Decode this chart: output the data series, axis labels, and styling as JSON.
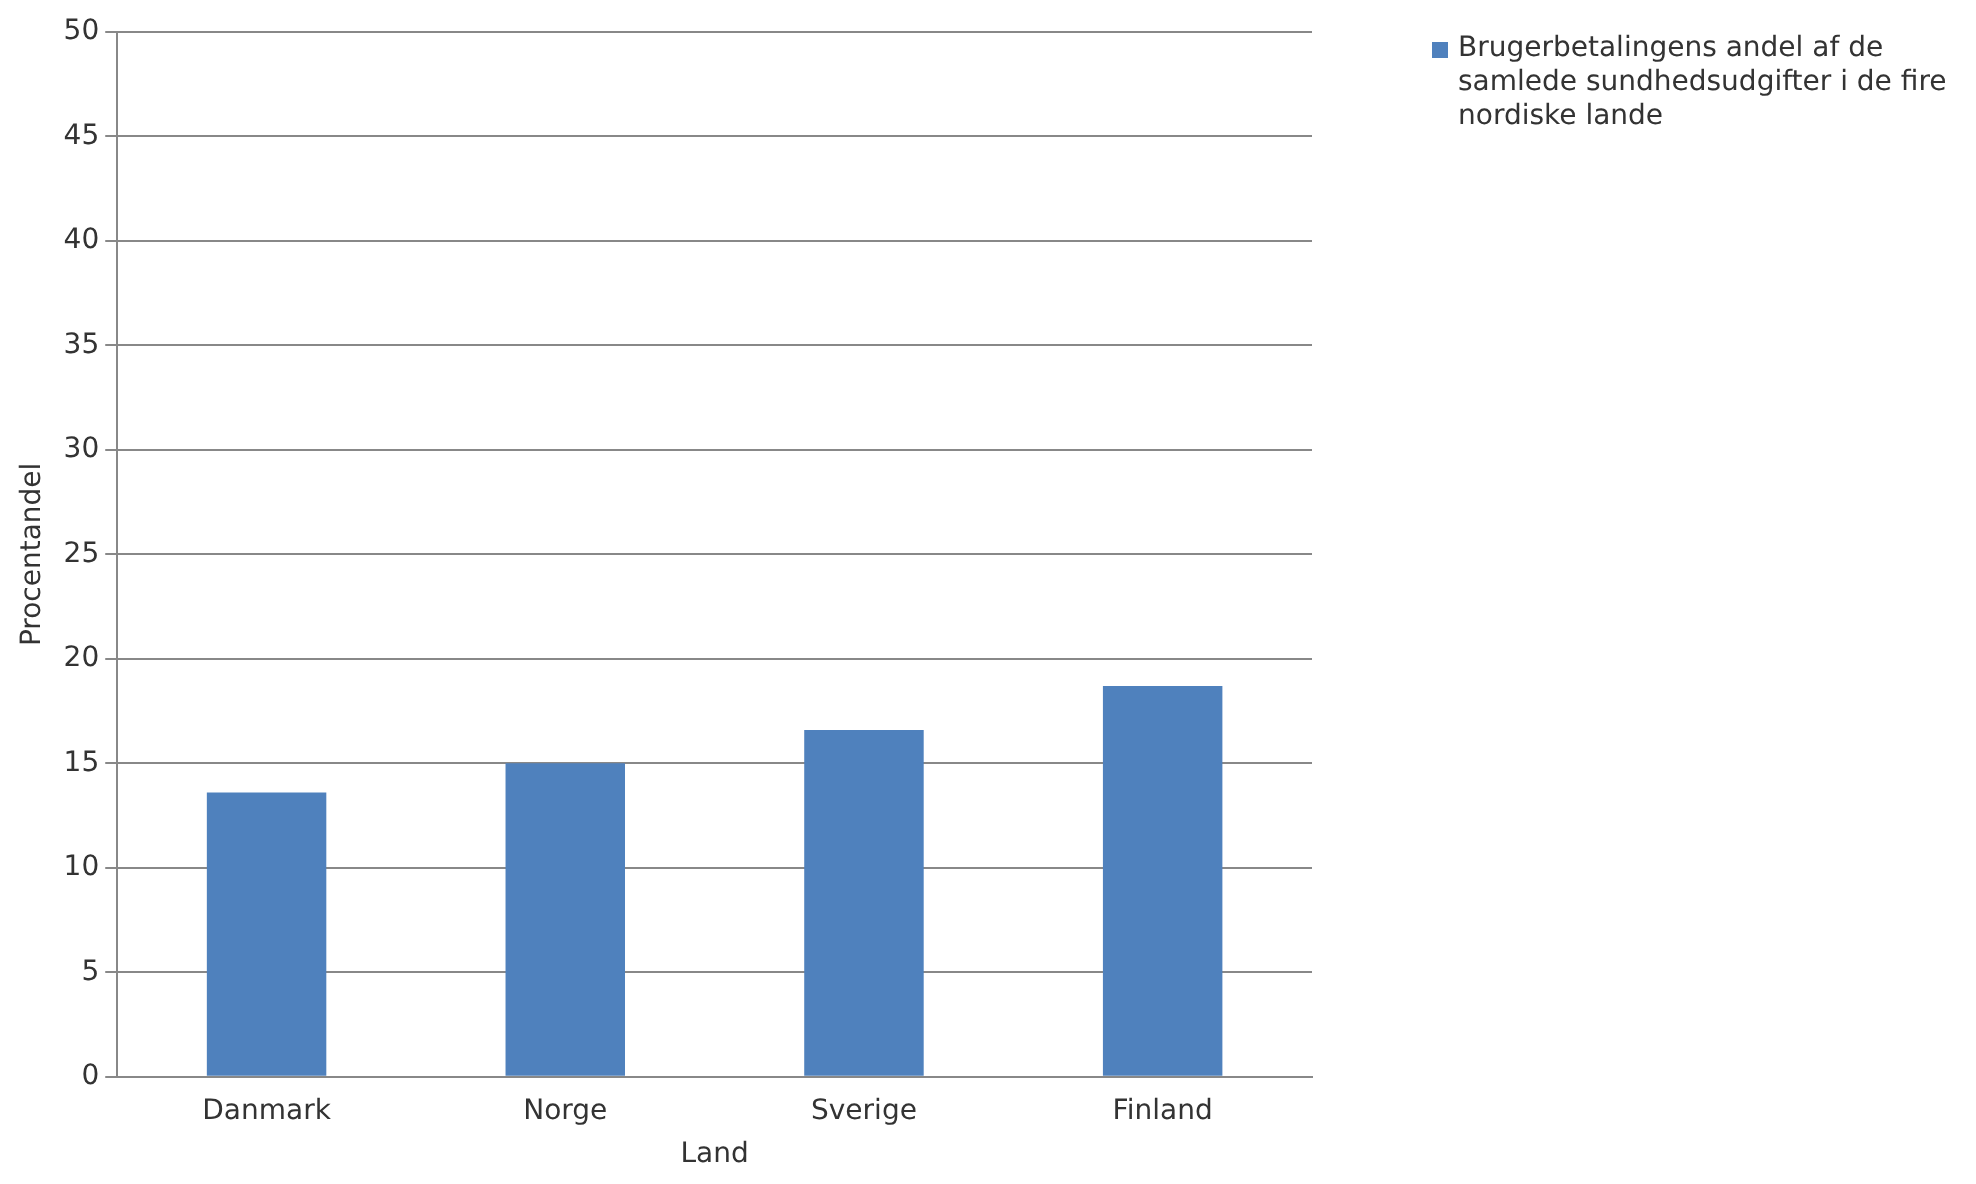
{
  "chart_data": {
    "type": "bar",
    "xlabel": "Land",
    "ylabel": "Procentandel",
    "categories": [
      "Danmark",
      "Norge",
      "Sverige",
      "Finland"
    ],
    "series": [
      {
        "name": "Brugerbetalingens andel af de samlede sundhedsudgifter i de fire nordiske lande",
        "color": "#4f81bd",
        "values": [
          13.6,
          15.0,
          16.6,
          18.7
        ]
      }
    ],
    "ylim": [
      0,
      50
    ],
    "yticks": [
      0,
      5,
      10,
      15,
      20,
      25,
      30,
      35,
      40,
      45,
      50
    ],
    "grid": "y",
    "legend": "top right"
  }
}
